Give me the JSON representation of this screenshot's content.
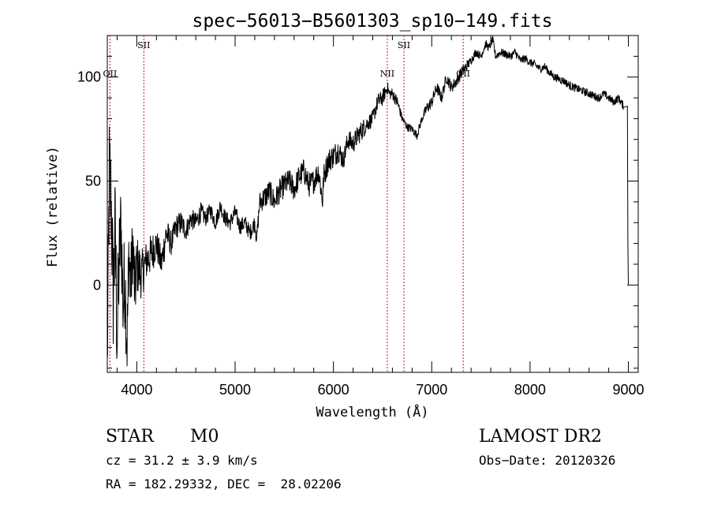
{
  "chart_data": {
    "type": "line",
    "title": "spec−56013−B5601303_sp10−149.fits",
    "xlabel": "Wavelength (Å)",
    "ylabel": "Flux (relative)",
    "xlim": [
      3700,
      9100
    ],
    "ylim": [
      -42,
      120
    ],
    "x_ticks": [
      4000,
      5000,
      6000,
      7000,
      8000,
      9000
    ],
    "y_ticks": [
      0,
      50,
      100
    ],
    "grid": false,
    "series": [
      {
        "x": [
          3700,
          3720,
          3740,
          3760,
          3780,
          3800,
          3820,
          3840,
          3860,
          3880,
          3900,
          3920,
          3940,
          3960,
          3980,
          4000,
          4050,
          4100,
          4150,
          4200,
          4250,
          4300,
          4350,
          4400,
          4450,
          4500,
          4550,
          4600,
          4650,
          4700,
          4750,
          4800,
          4850,
          4900,
          4950,
          5000,
          5050,
          5100,
          5150,
          5200,
          5220,
          5250,
          5300,
          5350,
          5400,
          5450,
          5500,
          5550,
          5600,
          5650,
          5700,
          5750,
          5800,
          5850,
          5890,
          5900,
          5950,
          6000,
          6050,
          6100,
          6150,
          6200,
          6250,
          6300,
          6350,
          6400,
          6450,
          6500,
          6550,
          6570,
          6600,
          6650,
          6700,
          6750,
          6800,
          6850,
          6900,
          6950,
          7000,
          7050,
          7100,
          7150,
          7200,
          7250,
          7300,
          7350,
          7400,
          7450,
          7500,
          7550,
          7580,
          7620,
          7650,
          7700,
          7750,
          7800,
          7850,
          7900,
          7950,
          8000,
          8050,
          8100,
          8150,
          8200,
          8250,
          8300,
          8350,
          8400,
          8450,
          8500,
          8550,
          8600,
          8650,
          8700,
          8750,
          8800,
          8850,
          8900,
          8950,
          9000
        ],
        "values": [
          -40,
          50,
          40,
          -5,
          25,
          -25,
          10,
          30,
          -10,
          5,
          -30,
          15,
          0,
          20,
          -5,
          10,
          5,
          12,
          15,
          20,
          10,
          25,
          20,
          28,
          30,
          26,
          32,
          30,
          35,
          32,
          36,
          30,
          38,
          32,
          30,
          35,
          28,
          30,
          25,
          30,
          22,
          40,
          42,
          45,
          40,
          45,
          48,
          50,
          46,
          52,
          55,
          48,
          50,
          55,
          40,
          52,
          60,
          62,
          65,
          60,
          70,
          68,
          72,
          75,
          78,
          80,
          88,
          90,
          95,
          92,
          92,
          88,
          80,
          76,
          75,
          72,
          80,
          85,
          88,
          95,
          90,
          100,
          95,
          98,
          102,
          105,
          108,
          112,
          110,
          116,
          114,
          118,
          110,
          112,
          111,
          110,
          112,
          108,
          109,
          107,
          106,
          104,
          105,
          102,
          100,
          99,
          98,
          96,
          95,
          94,
          93,
          92,
          91,
          90,
          92,
          90,
          88,
          90,
          86,
          0
        ],
        "noise_amplitude": [
          15,
          35,
          30,
          30,
          30,
          30,
          25,
          25,
          25,
          25,
          20,
          20,
          20,
          18,
          18,
          15,
          12,
          10,
          10,
          8,
          8,
          8,
          6,
          6,
          6,
          5,
          5,
          5,
          5,
          4,
          4,
          4,
          4,
          4,
          4,
          4,
          4,
          4,
          4,
          4,
          4,
          5,
          6,
          6,
          6,
          6,
          6,
          6,
          6,
          6,
          6,
          6,
          6,
          6,
          6,
          6,
          6,
          6,
          6,
          5,
          5,
          5,
          5,
          5,
          4,
          4,
          4,
          4,
          3,
          3,
          3,
          3,
          2,
          2,
          2,
          2,
          2,
          3,
          3,
          3,
          3,
          3,
          3,
          3,
          3,
          3,
          2,
          2,
          2,
          2,
          2,
          2,
          2,
          2,
          2,
          2,
          2,
          2,
          2,
          2,
          2,
          2,
          2,
          2,
          2,
          2,
          2,
          2,
          2,
          2,
          2,
          2,
          2,
          2,
          2,
          2,
          2,
          2,
          2,
          2
        ]
      }
    ],
    "lines": [
      {
        "label": "OII",
        "x": 3727
      },
      {
        "label": "SII",
        "x": 4072
      },
      {
        "label": "NII",
        "x": 6548
      },
      {
        "label": "SII",
        "x": 6717
      },
      {
        "label": "OII",
        "x": 7320
      }
    ],
    "line_color": "#b22222"
  },
  "info": {
    "class_label": "STAR",
    "subclass_label": "M0",
    "cz": "cz = 31.2 ± 3.9 km/s",
    "radec": "RA = 182.29332, DEC =  28.02206",
    "survey": "LAMOST DR2",
    "obs_date": "Obs−Date: 20120326"
  }
}
